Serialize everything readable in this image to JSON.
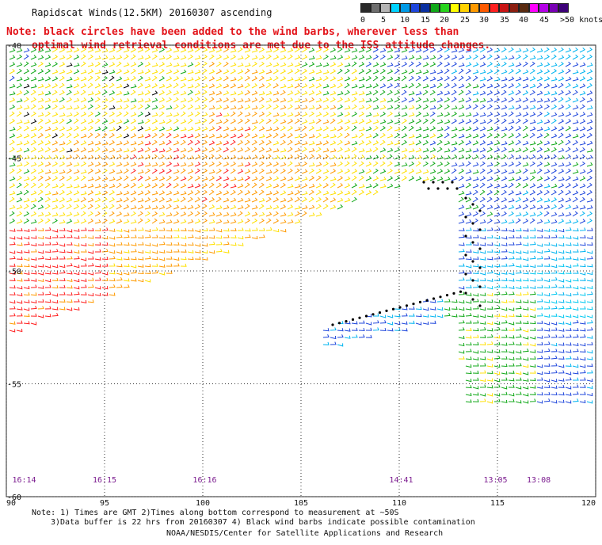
{
  "header": {
    "title": "Rapidscat Winds(12.5KM) 20160307 ascending",
    "note_line1": "Note: black circles have been added to the wind barbs, wherever less than",
    "note_line2": "optimal wind retrieval conditions are met due to the ISS attitude changes."
  },
  "legend": {
    "labels": [
      "0",
      "5",
      "10",
      "15",
      "20",
      "25",
      "30",
      "35",
      "40",
      "45",
      ">50 knots"
    ],
    "colors": [
      "#555555",
      "#8a8a8a",
      "#00a0e8",
      "#1e3cd2",
      "#10b418",
      "#ffe000",
      "#ff9000",
      "#e02020",
      "#a02020",
      "#e000e0",
      "#5a00a0"
    ]
  },
  "map": {
    "lat_labels": [
      "-40",
      "-45",
      "-50",
      "-55",
      "-60"
    ],
    "lon_labels": [
      "90",
      "95",
      "100",
      "105",
      "110",
      "115",
      "120"
    ],
    "time_labels": [
      "16:14",
      "16:15",
      "16:16",
      "14:41",
      "13:05",
      "13:08"
    ],
    "grid_style": "dotted",
    "symbols": "wind barbs colored by speed"
  },
  "footer": {
    "line1": "Note: 1) Times are GMT 2)Times along bottom correspond to measurement at ~50S",
    "line2": "3)Data buffer is 22 hrs from 20160307 4) Black wind barbs indicate possible contamination",
    "line3": "NOAA/NESDIS/Center for Satellite Applications and Research"
  }
}
